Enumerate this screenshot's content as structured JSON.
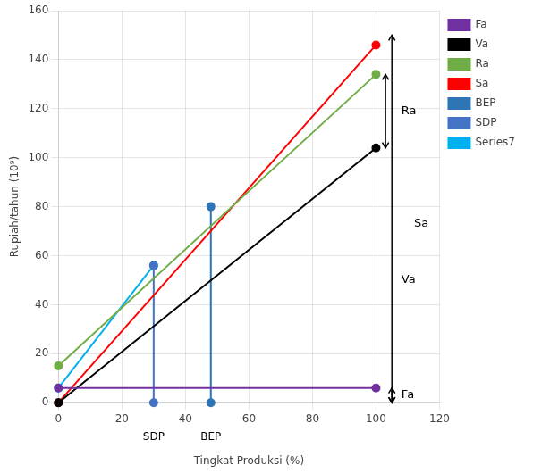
{
  "chart_data": {
    "type": "line",
    "title": "",
    "xlabel": "Tingkat Produksi (%)",
    "ylabel": "Rupiah/tahun (10⁹)",
    "xlim": [
      0,
      120
    ],
    "ylim": [
      0,
      160
    ],
    "xticks": [
      0,
      20,
      40,
      60,
      80,
      100,
      120
    ],
    "yticks": [
      0,
      20,
      40,
      60,
      80,
      100,
      120,
      140,
      160
    ],
    "grid": true,
    "legend": "right",
    "series": [
      {
        "name": "Fa",
        "color": "#7030a0",
        "marker": "circle",
        "x": [
          0,
          100
        ],
        "values": [
          6,
          6
        ]
      },
      {
        "name": "Va",
        "color": "#000000",
        "marker": "circle",
        "x": [
          0,
          100
        ],
        "values": [
          0,
          104
        ]
      },
      {
        "name": "Ra",
        "color": "#70ad47",
        "marker": "circle",
        "x": [
          0,
          100
        ],
        "values": [
          15,
          134
        ]
      },
      {
        "name": "Sa",
        "color": "#ff0000",
        "marker": "circle",
        "x": [
          0,
          100
        ],
        "values": [
          0,
          146
        ]
      },
      {
        "name": "BEP",
        "color": "#2e75b6",
        "marker": "circle",
        "x": [
          48,
          48
        ],
        "values": [
          0,
          80
        ]
      },
      {
        "name": "SDP",
        "color": "#4472c4",
        "marker": "circle",
        "x": [
          30,
          30
        ],
        "values": [
          0,
          56
        ]
      },
      {
        "name": "Series7",
        "color": "#00b0f0",
        "marker": "circle",
        "x": [
          0,
          30
        ],
        "values": [
          6,
          56
        ]
      }
    ],
    "annotations": [
      {
        "text": "SDP",
        "x": 30,
        "y": -12
      },
      {
        "text": "BEP",
        "x": 48,
        "y": -12
      },
      {
        "text": "Sa",
        "x": 112,
        "y": 73
      },
      {
        "text": "Ra",
        "x": 108,
        "y": 119
      },
      {
        "text": "Va",
        "x": 108,
        "y": 50
      },
      {
        "text": "Fa",
        "x": 108,
        "y": 3
      }
    ],
    "arrows": [
      {
        "x": 105,
        "from": 0,
        "to": 150
      },
      {
        "x": 103,
        "from": 104,
        "to": 134
      },
      {
        "x": 105,
        "from": 0,
        "to": 6
      }
    ]
  }
}
